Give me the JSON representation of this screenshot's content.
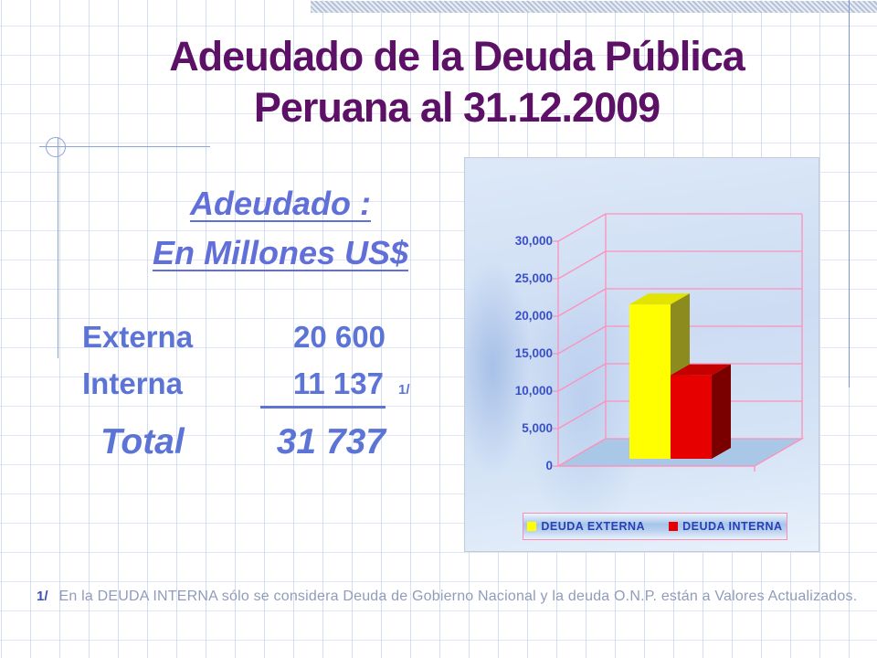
{
  "slide": {
    "title": {
      "line1": "Adeudado de la Deuda Pública",
      "line2": "Peruana al 31.12.2009"
    },
    "subtitle": {
      "line1": "Adeudado :",
      "line2": "En Millones US$"
    },
    "figures": {
      "rows": [
        {
          "label": "Externa",
          "value": "20 600"
        },
        {
          "label": "Interna",
          "value": "11 137",
          "note_marker": "1/"
        }
      ],
      "total_label": "Total",
      "total_value": "31 737"
    },
    "footnote": {
      "marker": "1/",
      "text": "En la DEUDA INTERNA sólo se considera Deuda de Gobierno Nacional y la deuda O.N.P. están a Valores Actualizados."
    }
  },
  "chart_data": {
    "type": "bar",
    "style": "3d-column",
    "title": "",
    "xlabel": "",
    "ylabel": "",
    "categories": [
      "DEUDA EXTERNA",
      "DEUDA INTERNA"
    ],
    "series": [
      {
        "name": "DEUDA EXTERNA",
        "values": [
          20600
        ],
        "color": "#ffff00"
      },
      {
        "name": "DEUDA INTERNA",
        "values": [
          11137
        ],
        "color": "#e60000"
      }
    ],
    "ylim": [
      0,
      30000
    ],
    "ytick_step": 5000,
    "ytick_values": [
      30000,
      25000,
      20000,
      15000,
      10000,
      5000,
      0
    ],
    "yticks": [
      "30,000",
      "25,000",
      "20,000",
      "15,000",
      "10,000",
      "5,000",
      "0"
    ],
    "grid": true,
    "legend_position": "bottom"
  },
  "colors": {
    "title": "#5c1166",
    "accent_text": "#5b74d6",
    "axis_label": "#3a50c8",
    "chart_frame_pink": "#ff90ba",
    "chart_floor": "#a9c7e6",
    "legend_text": "#2a3eb8",
    "footnote_text": "#8f9cbb",
    "template_line": "#8ba3d8"
  }
}
